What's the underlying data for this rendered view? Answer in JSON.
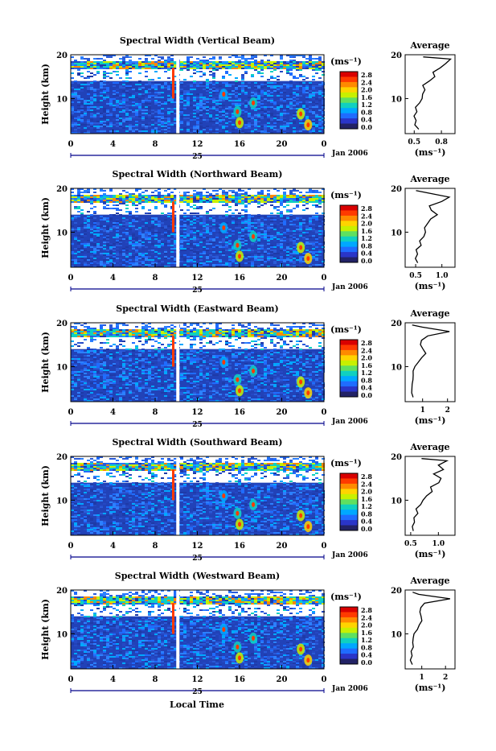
{
  "date_label": "Jan 2006",
  "day_label": "25",
  "xlabel": "Local Time",
  "ylabel": "Height (km)",
  "unit_label": "(ms⁻¹)",
  "colorbar_ticks": [
    "2.8",
    "2.4",
    "2.0",
    "1.6",
    "1.2",
    "0.8",
    "0.4",
    "0.0"
  ],
  "colorbar_colors": [
    "#d90000",
    "#ff3a00",
    "#ff8a00",
    "#ffd400",
    "#c8f000",
    "#5fe060",
    "#10d0c0",
    "#00a8ff",
    "#1f6cff",
    "#2a35c8",
    "#222266"
  ],
  "chart_data": [
    {
      "type": "heatmap",
      "title": "Spectral Width (Vertical Beam)",
      "x_ticks": [
        "0",
        "4",
        "8",
        "12",
        "16",
        "20",
        "0"
      ],
      "y_ticks": [
        "20",
        "10"
      ],
      "xlim": [
        0,
        24
      ],
      "ylim": [
        2,
        20
      ],
      "average": {
        "title": "Average",
        "x_ticks": [
          "0.5",
          "0.8"
        ],
        "xlim": [
          0.4,
          0.95
        ],
        "heights": [
          3,
          4,
          5,
          6,
          7,
          8,
          9,
          10,
          11,
          12,
          13,
          14,
          15,
          16,
          17,
          18,
          19,
          19.5
        ],
        "values": [
          0.55,
          0.5,
          0.52,
          0.5,
          0.53,
          0.52,
          0.55,
          0.58,
          0.6,
          0.62,
          0.6,
          0.66,
          0.72,
          0.7,
          0.78,
          0.85,
          0.9,
          0.6
        ]
      }
    },
    {
      "type": "heatmap",
      "title": "Spectral Width (Northward Beam)",
      "x_ticks": [
        "0",
        "4",
        "8",
        "12",
        "16",
        "20",
        "0"
      ],
      "y_ticks": [
        "20",
        "10"
      ],
      "xlim": [
        0,
        24
      ],
      "ylim": [
        2,
        20
      ],
      "average": {
        "title": "Average",
        "x_ticks": [
          "0.5",
          "1.0"
        ],
        "xlim": [
          0.3,
          1.25
        ],
        "heights": [
          3,
          4,
          5,
          6,
          7,
          8,
          9,
          10,
          11,
          12,
          13,
          14,
          15,
          16,
          17,
          18,
          19,
          19.5
        ],
        "values": [
          0.55,
          0.5,
          0.55,
          0.52,
          0.6,
          0.58,
          0.65,
          0.7,
          0.68,
          0.72,
          0.78,
          0.9,
          0.8,
          0.75,
          1.0,
          1.15,
          0.7,
          0.5
        ]
      }
    },
    {
      "type": "heatmap",
      "title": "Spectral Width (Eastward Beam)",
      "x_ticks": [
        "0",
        "4",
        "8",
        "12",
        "16",
        "20",
        "0"
      ],
      "y_ticks": [
        "20",
        "10"
      ],
      "xlim": [
        0,
        24
      ],
      "ylim": [
        2,
        20
      ],
      "average": {
        "title": "Average",
        "x_ticks": [
          "1",
          "2"
        ],
        "xlim": [
          0.3,
          2.3
        ],
        "heights": [
          3,
          4,
          5,
          6,
          7,
          8,
          9,
          10,
          11,
          12,
          13,
          14,
          15,
          16,
          17,
          18,
          19,
          19.5
        ],
        "values": [
          0.6,
          0.55,
          0.6,
          0.58,
          0.62,
          0.6,
          0.65,
          0.7,
          0.8,
          0.95,
          1.1,
          1.0,
          0.9,
          0.95,
          1.2,
          2.1,
          1.0,
          0.6
        ]
      }
    },
    {
      "type": "heatmap",
      "title": "Spectral Width (Southward Beam)",
      "x_ticks": [
        "0",
        "4",
        "8",
        "12",
        "16",
        "20",
        "0"
      ],
      "y_ticks": [
        "20",
        "10"
      ],
      "xlim": [
        0,
        24
      ],
      "ylim": [
        2,
        20
      ],
      "average": {
        "title": "Average",
        "x_ticks": [
          "0.5",
          "1.0"
        ],
        "xlim": [
          0.4,
          1.3
        ],
        "heights": [
          3,
          4,
          5,
          6,
          7,
          8,
          9,
          10,
          11,
          12,
          13,
          14,
          15,
          16,
          17,
          18,
          19,
          19.5
        ],
        "values": [
          0.55,
          0.52,
          0.58,
          0.55,
          0.62,
          0.6,
          0.68,
          0.72,
          0.8,
          0.9,
          0.85,
          1.0,
          1.05,
          0.9,
          1.1,
          1.0,
          1.15,
          0.7
        ]
      }
    },
    {
      "type": "heatmap",
      "title": "Spectral Width (Westward Beam)",
      "x_ticks": [
        "0",
        "4",
        "8",
        "12",
        "16",
        "20",
        "0"
      ],
      "y_ticks": [
        "20",
        "10"
      ],
      "xlim": [
        0,
        24
      ],
      "ylim": [
        2,
        20
      ],
      "average": {
        "title": "Average",
        "x_ticks": [
          "1",
          "2"
        ],
        "xlim": [
          0.3,
          2.4
        ],
        "heights": [
          3,
          4,
          5,
          6,
          7,
          8,
          9,
          10,
          11,
          12,
          13,
          14,
          15,
          16,
          17,
          18,
          19,
          19.5
        ],
        "values": [
          0.6,
          0.55,
          0.6,
          0.58,
          0.62,
          0.6,
          0.65,
          0.7,
          0.8,
          0.9,
          1.0,
          0.95,
          0.9,
          0.95,
          1.1,
          2.2,
          0.9,
          0.6
        ]
      }
    }
  ]
}
